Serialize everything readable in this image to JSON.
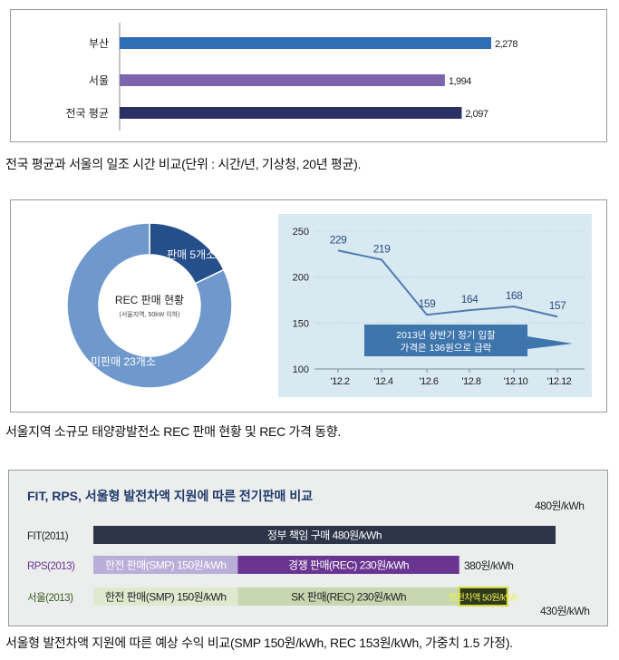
{
  "colors": {
    "busan": "#2f6db5",
    "seoul": "#7d65ad",
    "national": "#2b3263",
    "donut_sold": "#254f8a",
    "donut_unsold": "#6f98cc",
    "line": "#4d7bb2",
    "line_bg": "#d9e9f2",
    "fit_bar": "#2e3548",
    "smp_light": "#b9aed8",
    "rec_dark": "#6a3592",
    "seoul_light": "#dfe9cf",
    "seoul_mid": "#c7d7b0",
    "seoul_bonus": "#2f3a1c",
    "seoul_bonus_border": "#d5d83c"
  },
  "chart_data": [
    {
      "type": "bar",
      "orientation": "horizontal",
      "categories": [
        "부산",
        "서울",
        "전국 평균"
      ],
      "values": [
        2278,
        1994,
        2097
      ],
      "value_labels": [
        "2,278",
        "1,994",
        "2,097"
      ],
      "xlim": [
        0,
        2278
      ]
    },
    {
      "type": "pie",
      "donut": true,
      "center_title": "REC 판매 현황",
      "center_subtitle": "(서울지역, 50kW 이하)",
      "slices": [
        {
          "label": "판매 5개소",
          "value": 5
        },
        {
          "label": "미판매 23개소",
          "value": 23
        }
      ]
    },
    {
      "type": "line",
      "categories": [
        "'12.2",
        "'12.4",
        "'12.6",
        "'12.8",
        "'12.10",
        "'12.12"
      ],
      "values": [
        229,
        219,
        159,
        164,
        168,
        157
      ],
      "ylim": [
        100,
        250
      ],
      "yticks": [
        "100",
        "150",
        "200",
        "250"
      ],
      "annotation_line1": "2013년 상반기 정기 입찰",
      "annotation_line2": "가격은 136원으로 급락"
    },
    {
      "type": "bar",
      "orientation": "horizontal",
      "stacked": true,
      "title": "FIT, RPS, 서울형 발전차액 지원에 따른 전기판매 비교",
      "unit_max": 480,
      "rows": [
        {
          "label": "FIT(2011)",
          "total_label": "480원/kWh",
          "segments": [
            {
              "label": "정부 책임 구매 480원/kWh",
              "value": 480
            }
          ]
        },
        {
          "label": "RPS(2013)",
          "total_label": "380원/kWh",
          "segments": [
            {
              "label": "한전 판매(SMP) 150원/kWh",
              "value": 150
            },
            {
              "label": "경쟁 판매(REC) 230원/kWh",
              "value": 230
            }
          ]
        },
        {
          "label": "서울(2013)",
          "total_label": "430원/kWh",
          "segments": [
            {
              "label": "한전 판매(SMP) 150원/kWh",
              "value": 150
            },
            {
              "label": "SK 판매(REC) 230원/kWh",
              "value": 230
            },
            {
              "label": "발전차액 50원/kWh",
              "value": 50
            }
          ]
        }
      ]
    }
  ],
  "captions": {
    "c1": "전국 평균과 서울의 일조 시간 비교(단위 : 시간/년, 기상청, 20년 평균).",
    "c2": "서울지역 소규모 태양광발전소 REC 판매 현황 및 REC 가격 동향.",
    "c3": "서울형 발전차액 지원에 따른 예상 수익 비교(SMP 150원/kWh, REC 153원/kWh, 가중치 1.5 가정)."
  }
}
